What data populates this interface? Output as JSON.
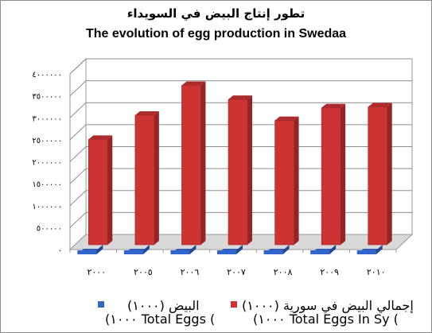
{
  "chart_data": {
    "type": "bar",
    "title": "تطور إنتاج البيض في السويداء",
    "subtitle": "The evolution of egg production in Swedaa",
    "categories": [
      "٢٠٠٠",
      "٢٠٠٥",
      "٢٠٠٦",
      "٢٠٠٧",
      "٢٠٠٨",
      "٢٠٠٩",
      "٢٠١٠"
    ],
    "series": [
      {
        "name": "البيض (١٠٠٠) Total Eggs (١٠٠٠)",
        "name_line1": "البيض (١٠٠٠)",
        "name_line2": "(١٠٠٠ Total Eggs (",
        "color": "#3366cc",
        "values": [
          5000,
          6000,
          15000,
          9000,
          8000,
          7000,
          8000
        ]
      },
      {
        "name": "إجمالي البيض في سورية (١٠٠٠) Total Eggs In Sy (١٠٠٠)",
        "name_line1": "إجمالي البيض في سورية (١٠٠٠)",
        "name_line2": "(١٠٠٠ Total Eggs In Sy (",
        "color": "#cc3333",
        "values": [
          2400000,
          2950000,
          3630000,
          3310000,
          2830000,
          3120000,
          3140000
        ]
      }
    ],
    "yticks": [
      "٠",
      "٥٠٠٠٠٠",
      "١٠٠٠٠٠٠",
      "١٥٠٠٠٠٠",
      "٢٠٠٠٠٠٠",
      "٢٥٠٠٠٠٠",
      "٣٠٠٠٠٠٠",
      "٣٥٠٠٠٠٠",
      "٤٠٠٠٠٠٠"
    ],
    "ylim": [
      0,
      4000000
    ],
    "grid": true,
    "legend_position": "bottom"
  }
}
